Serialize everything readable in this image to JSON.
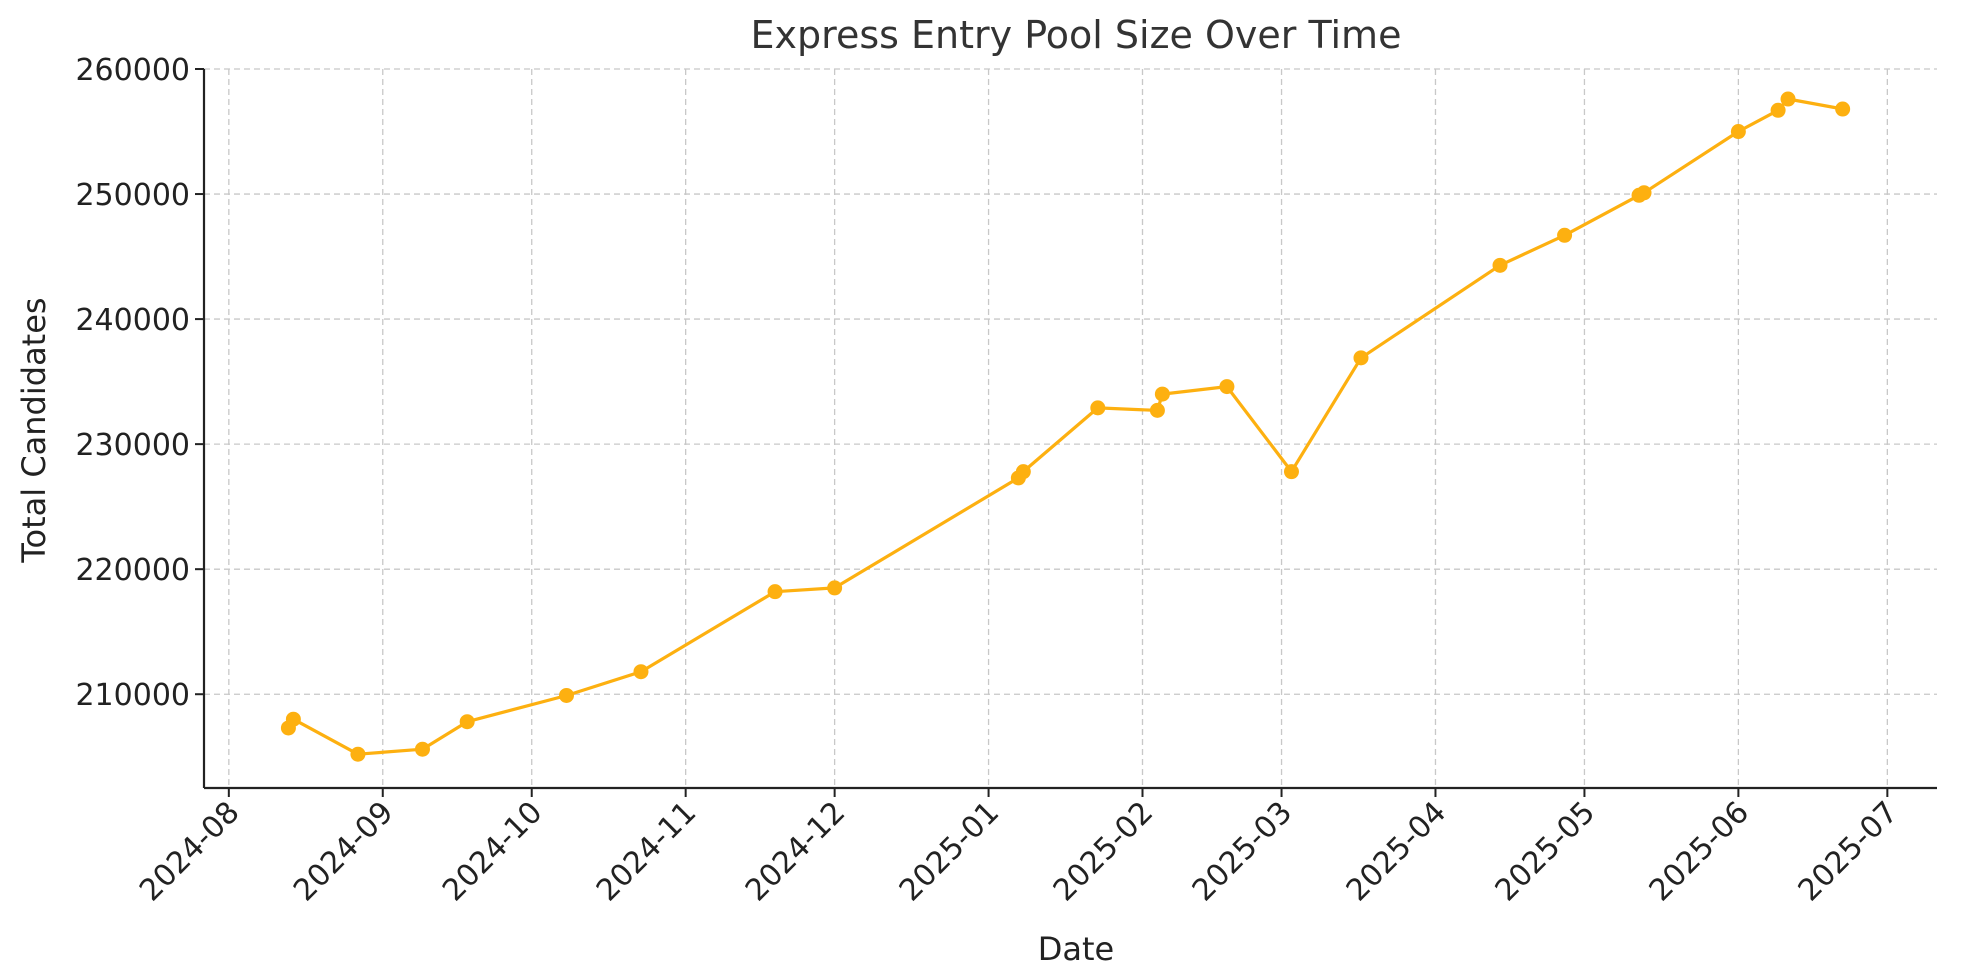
{
  "chart_data": {
    "type": "line",
    "title": "Express Entry Pool Size Over Time",
    "xlabel": "Date",
    "ylabel": "Total Candidates",
    "x_axis_type": "date",
    "xlim": [
      "2024-07-27",
      "2025-07-11"
    ],
    "ylim": [
      202500,
      260000
    ],
    "x_ticks": [
      "2024-08-01",
      "2024-09-01",
      "2024-10-01",
      "2024-11-01",
      "2024-12-01",
      "2025-01-01",
      "2025-02-01",
      "2025-03-01",
      "2025-04-01",
      "2025-05-01",
      "2025-06-01",
      "2025-07-01"
    ],
    "x_tick_labels": [
      "2024-08",
      "2024-09",
      "2024-10",
      "2024-11",
      "2024-12",
      "2025-01",
      "2025-02",
      "2025-03",
      "2025-04",
      "2025-05",
      "2025-06",
      "2025-07"
    ],
    "y_ticks": [
      210000,
      220000,
      230000,
      240000,
      250000,
      260000
    ],
    "y_tick_labels": [
      "210000",
      "220000",
      "230000",
      "240000",
      "250000",
      "260000"
    ],
    "grid": true,
    "line_color": "#FDB010",
    "series": [
      {
        "x": [
          "2024-08-13",
          "2024-08-14",
          "2024-08-27",
          "2024-09-09",
          "2024-09-18",
          "2024-10-08",
          "2024-10-23",
          "2024-11-19",
          "2024-12-01",
          "2025-01-07",
          "2025-01-08",
          "2025-01-23",
          "2025-02-04",
          "2025-02-05",
          "2025-02-18",
          "2025-03-03",
          "2025-03-17",
          "2025-04-14",
          "2025-04-27",
          "2025-05-12",
          "2025-05-13",
          "2025-06-01",
          "2025-06-09",
          "2025-06-11",
          "2025-06-22"
        ],
        "y": [
          207300,
          208000,
          205200,
          205600,
          207800,
          209900,
          211800,
          218200,
          218500,
          227300,
          227800,
          232900,
          232700,
          234000,
          234600,
          227800,
          236900,
          244300,
          246700,
          249900,
          250100,
          255000,
          256700,
          257600,
          256800
        ]
      }
    ]
  }
}
